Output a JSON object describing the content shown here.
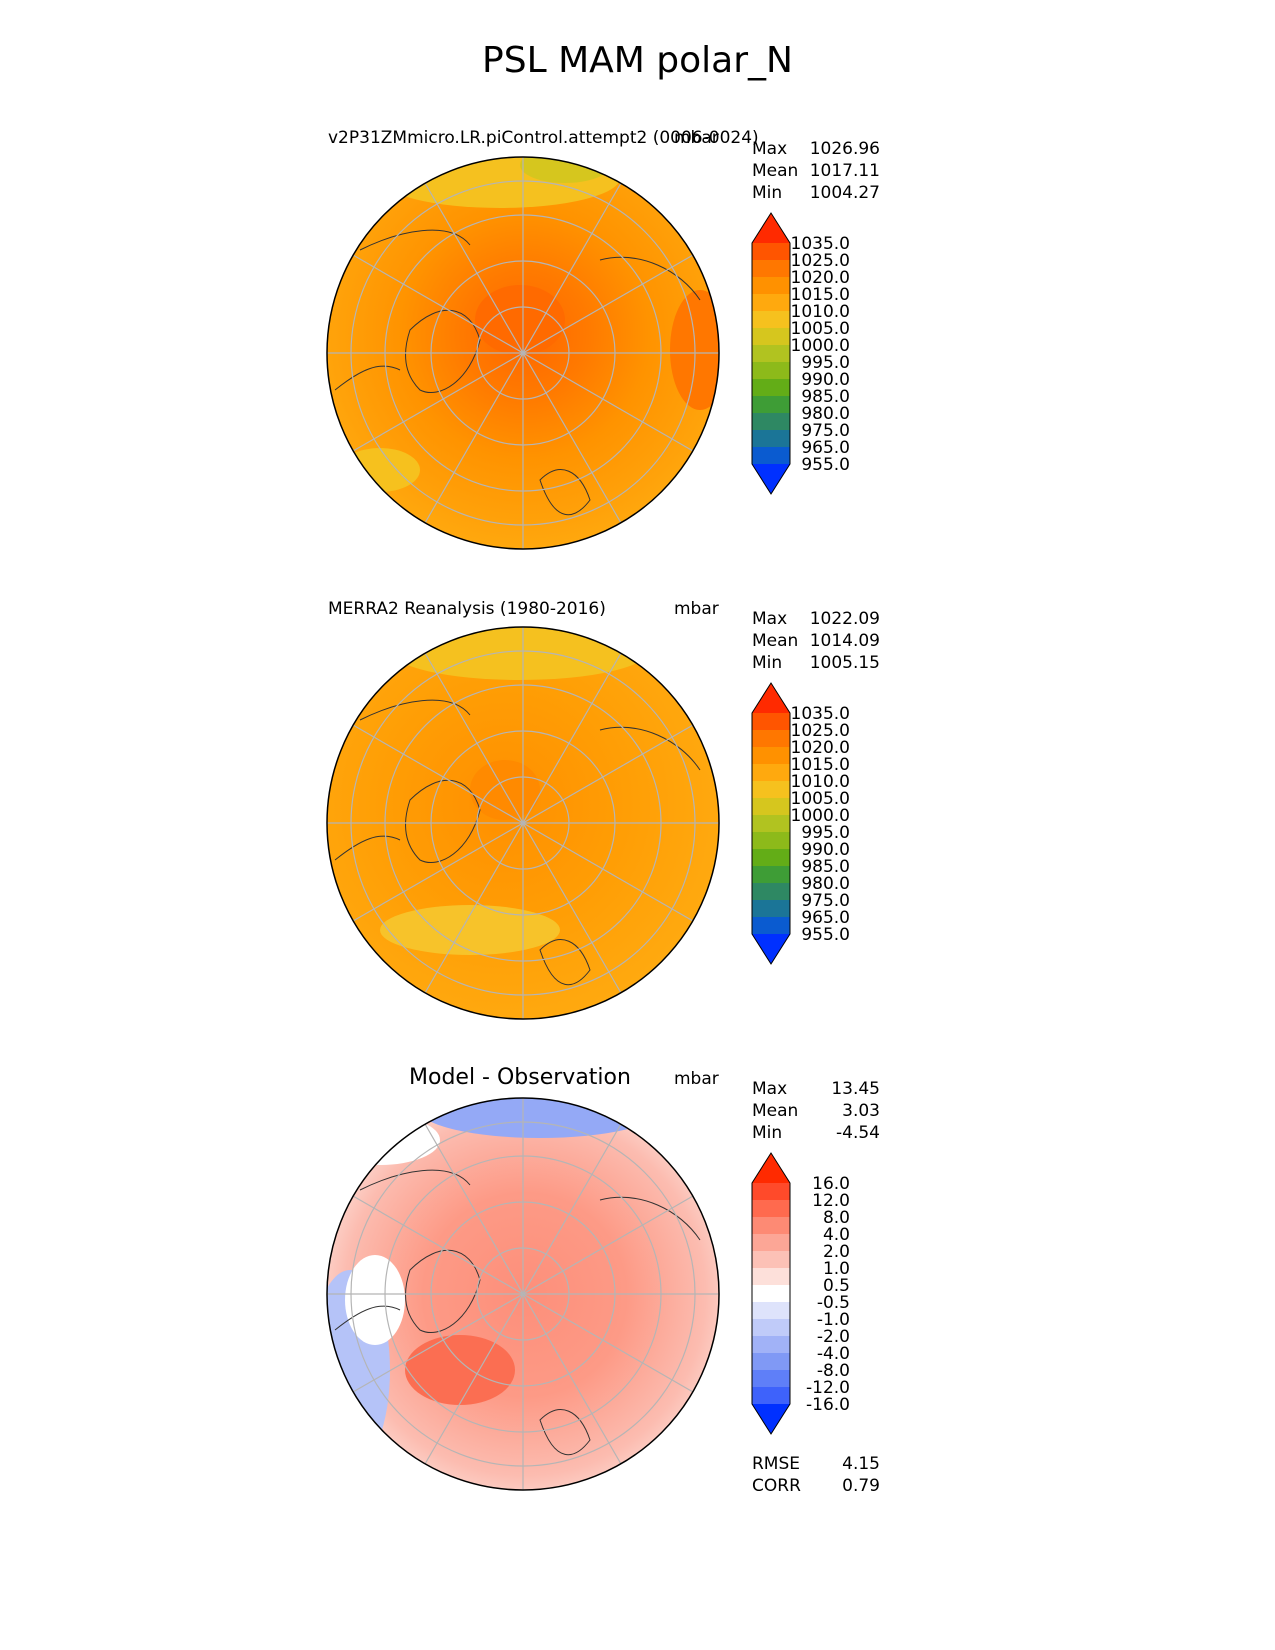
{
  "title": "PSL MAM polar_N",
  "panels": [
    {
      "id": "test",
      "title": "v2P31ZMmicro.LR.piControl.attempt2 (0006-0024)",
      "units": "mbar",
      "stats": [
        {
          "label": "Max",
          "value": "1026.96"
        },
        {
          "label": "Mean",
          "value": "1017.11"
        },
        {
          "label": "Min",
          "value": "1004.27"
        }
      ]
    },
    {
      "id": "ref",
      "title": "MERRA2 Reanalysis (1980-2016)",
      "units": "mbar",
      "stats": [
        {
          "label": "Max",
          "value": "1022.09"
        },
        {
          "label": "Mean",
          "value": "1014.09"
        },
        {
          "label": "Min",
          "value": "1005.15"
        }
      ]
    },
    {
      "id": "diff",
      "title": "Model - Observation",
      "units": "mbar",
      "stats": [
        {
          "label": "Max",
          "value": "13.45"
        },
        {
          "label": "Mean",
          "value": "3.03"
        },
        {
          "label": "Min",
          "value": "-4.54"
        }
      ],
      "metrics": [
        {
          "label": "RMSE",
          "value": "4.15"
        },
        {
          "label": "CORR",
          "value": "0.79"
        }
      ]
    }
  ],
  "chart_data": [
    {
      "type": "heatmap",
      "projection": "north polar stereographic",
      "title": "v2P31ZMmicro.LR.piControl.attempt2 (0006-0024)",
      "units": "mbar",
      "colorbar": {
        "levels": [
          "1035.0",
          "1025.0",
          "1020.0",
          "1015.0",
          "1010.0",
          "1005.0",
          "1000.0",
          "995.0",
          "990.0",
          "985.0",
          "980.0",
          "975.0",
          "965.0",
          "955.0"
        ],
        "colors": [
          "#ff2a00",
          "#ff5500",
          "#ff7700",
          "#ff9100",
          "#ffa90e",
          "#f6c11e",
          "#d6c61e",
          "#b1c320",
          "#8dba1a",
          "#63ad17",
          "#3e9d36",
          "#2e8863",
          "#1b7597",
          "#0a5bd0",
          "#0030ff"
        ]
      },
      "field": "sea level pressure, mostly 1010-1025 mbar, max near pole"
    },
    {
      "type": "heatmap",
      "projection": "north polar stereographic",
      "title": "MERRA2 Reanalysis (1980-2016)",
      "units": "mbar",
      "colorbar": {
        "levels": [
          "1035.0",
          "1025.0",
          "1020.0",
          "1015.0",
          "1010.0",
          "1005.0",
          "1000.0",
          "995.0",
          "990.0",
          "985.0",
          "980.0",
          "975.0",
          "965.0",
          "955.0"
        ],
        "colors": [
          "#ff2a00",
          "#ff5500",
          "#ff7700",
          "#ff9100",
          "#ffa90e",
          "#f6c11e",
          "#d6c61e",
          "#b1c320",
          "#8dba1a",
          "#63ad17",
          "#3e9d36",
          "#2e8863",
          "#1b7597",
          "#0a5bd0",
          "#0030ff"
        ]
      },
      "field": "sea level pressure, mostly 1010-1020 mbar"
    },
    {
      "type": "heatmap",
      "projection": "north polar stereographic",
      "title": "Model - Observation",
      "units": "mbar",
      "colorbar": {
        "levels": [
          "16.0",
          "12.0",
          "8.0",
          "4.0",
          "2.0",
          "1.0",
          "0.5",
          "-0.5",
          "-1.0",
          "-2.0",
          "-4.0",
          "-8.0",
          "-12.0",
          "-16.0"
        ],
        "colors": [
          "#ff2a00",
          "#ff4a2a",
          "#ff6a4e",
          "#fd8a74",
          "#fca696",
          "#fcc1b6",
          "#fde0da",
          "#ffffff",
          "#dee3fb",
          "#c0cbf9",
          "#a1b2f7",
          "#8099f5",
          "#5f7ff8",
          "#3e62fb",
          "#0030ff"
        ]
      },
      "field": "difference field, mostly positive (+2 to +8) over Arctic, negative near edges"
    }
  ]
}
